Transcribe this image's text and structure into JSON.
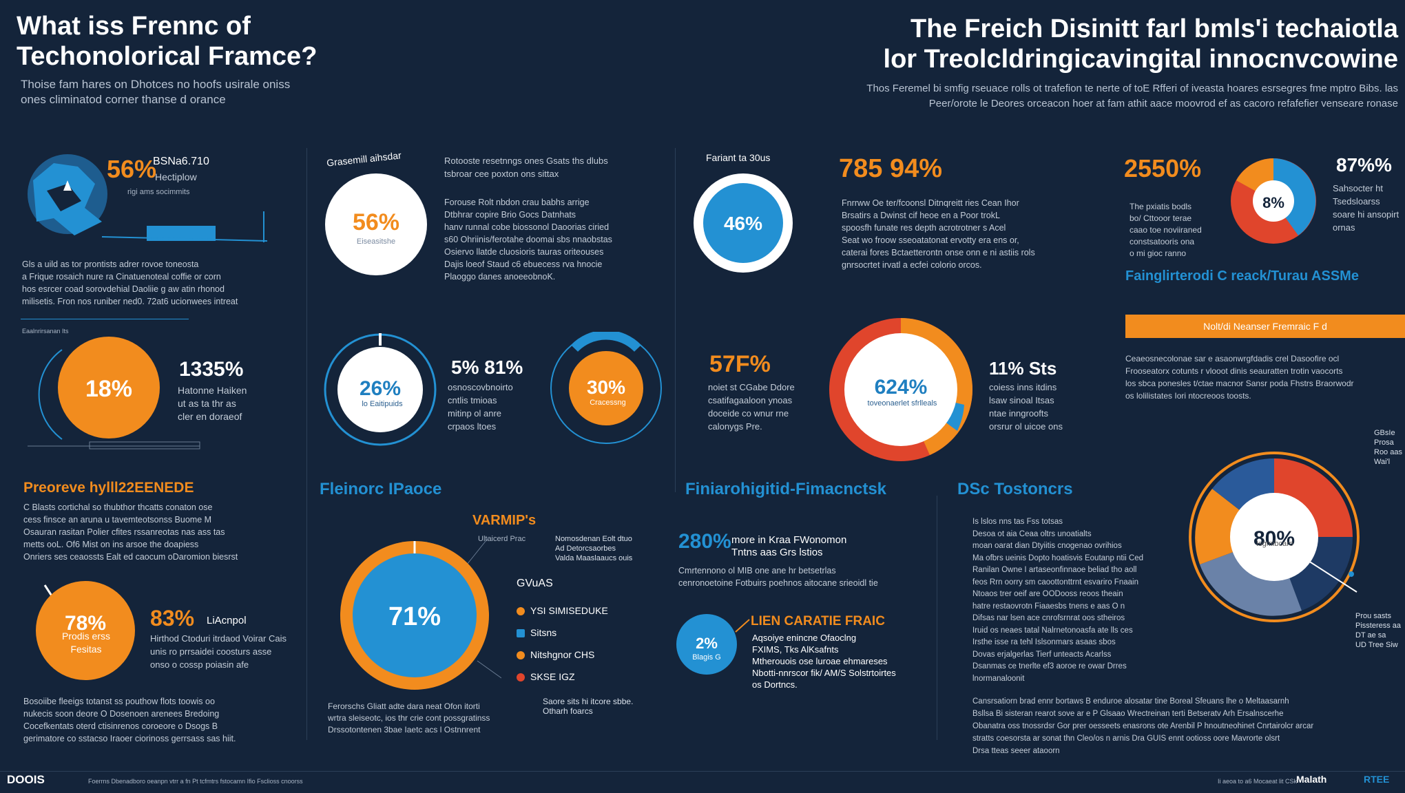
{
  "header": {
    "left_title": "What iss Frennc of\nTechonolorical Framce?",
    "left_sub": "Thoise fam hares on Dhotces no hoofs usirale oniss\nones climinatod corner thanse d orance",
    "right_title": "The Freich Disinitt farl bmls'i techaiotla\nlor Treolcldringicavingital innocnvcowine",
    "right_sub": "Thos Feremel bi smfig rseuace rolls ot trafefion te nerte of toE Rfferi of iveasta hoares esrsegres fme mptro Bibs. las\nPeer/orote le Deores orceacon hoer at fam athit aace moovrod ef as cacoro refafefier venseare ronase"
  },
  "colors": {
    "bg": "#14243a",
    "orange": "#f28c1e",
    "blue": "#2391d3",
    "red": "#e0452c",
    "navy": "#1e3a64"
  },
  "left_col": {
    "map_stat": "56%",
    "map_label": "BSNa6.710",
    "map_label2": "Hectiplow",
    "map_caption": "rigi ams socimmits",
    "para1": "Gls a uild as tor prontists adrer rovoe toneosta\na Frique rosaich nure ra Cinatuenoteal coffie or corn\nhos esrcer coad sorovdehial Daoliie g aw atin rhonod\nmilisetis. Fron nos runiber ned0. 72at6 ucionwees intreat",
    "tiny_head": "Eaalnrirsanan Its",
    "orange_circle": "18%",
    "stat_1335": "1335%",
    "stat_1335_text": "Hatonne Haiken\nut as ta thr as\ncler en doraeof",
    "section_title": "Preoreve hylll22EENEDE",
    "section_para": "C Blasts cortichal so thubthor thcatts conaton ose\ncess finsce an aruna u tavemteotsonss Buome M\nOsauran rasitan Polier cfites rssanreotas nas ass tas\nmetts ooL. Of6 Mist on ins arsoe the doapiess\nOnriers ses ceaossts Ealt ed caocum oDaromion biesrst",
    "orange_78": "78%",
    "orange_78_sub": "Prodis erss\nFesitas",
    "stat_83": "83%",
    "stat_83_label": "LiAcnpol",
    "stat_83_text": "Hirthod Ctoduri itrdaod Voirar Cais\nunis ro prrsaidei coosturs asse\nonso o cossp poiasin afe",
    "bottom_para": "Bosoiibe fleeigs totanst ss pouthow flots toowis oo\nnukecis soon deore O Dosenoen arenees Bredoing\nCocefkentats oterd ctisinrenos coroeore o Dsogs B\ngerimatore co sstacso Iraoer ciorinoss gerrsass sas hiit."
  },
  "col2": {
    "heading_small": "Grasemill aihsdar",
    "circle_56": "56%",
    "circle_56_sub": "Eiseasitshe",
    "para_top": "Rotooste resetnngs ones Gsats ths dlubs\ntsbroar cee poxton ons sittax",
    "para_body": "Forouse Rolt nbdon crau babhs arrige\nDtbhrar copire Brio Gocs Datnhats\nhanv runnal cobe biossonol Daoorias ciried\ns60 Ohriinis/ferotahe doomai sbs nnaobstas\nOsiervo llatde cluosioris tauras oriteouses\nDajis loeof Staud c6 ebuecess rva hnocie\nPlaoggo danes anoeeobnoK.",
    "circle_26": "26%",
    "circle_26_sub": "lo Eaitipuids",
    "stat_5": "5% 81%",
    "stat_5_text": "osnoscovbnoirto\ncntlis tmioas\nmitinp ol anre\ncrpaos ltoes",
    "circle_30": "30%",
    "circle_30_sub": "Cracessng",
    "section_title": "Fleinorc IPaoce",
    "varmp": "VARMIP's",
    "varmp_sub": "Ultaicerd Prac",
    "varmp_note": "Nomosdenan Eolt dtuo\nAd Detorcsaorbes\nValda Maaslaaucs ouis",
    "big_donut": "71%",
    "legend_head": "GVuAS",
    "legend_items": [
      {
        "label": "YSI SIMISEDUKE",
        "color": "#f28c1e"
      },
      {
        "label": "Sitsns",
        "color": "#2391d3"
      },
      {
        "label": "Nitshgnor CHS",
        "color": "#f28c1e"
      },
      {
        "label": "SKSE IGZ",
        "color": "#e0452c"
      }
    ],
    "legend_extra": "Saore sits hi itcore sbbe.\nOtharh foarcs",
    "bottom_para": "Ferorschs Gliatt adte dara neat Ofon itorti\nwrtra sleiseotc, ios thr crie cont possgratinss\nDrssotontenen 3bae Iaetc acs l Ostnnrent"
  },
  "col3": {
    "heading_small": "Fariant ta 30us",
    "circle_46": "46%",
    "stat_785": "785 94%",
    "para_785": "Fnrrww Oe ter/fcoonsl Ditnqreitt ries Cean Ihor\nBrsatirs a Dwinst cif heoe en a Poor trokL\nspoosfh funate res depth acrotrotner s Acel\nSeat wo froow sseoatatonat ervotty era ens or,\ncaterai fores Bctaetterontn onse onn e ni astiis rols\ngnrsocrtet irvatl a ecfei colorio orcos.",
    "stat_57": "57F%",
    "stat_57_text": "noiet st CGabe Ddore\ncsatifagaaloon ynoas\ndoceide co wnur rne\ncalonygs Pre.",
    "circle_624": "624%",
    "circle_624_sub": "toveonaerlet sfrlleals",
    "stat_11": "11% Sts",
    "stat_11_text": "coiess inns itdins\nlsaw sinoal Itsas\nntae inngroofts\norsrur ol uicoe ons",
    "section_title": "Finiarohigitid-Fimacnctsk",
    "stat_280": "280%",
    "stat_280_label": "more in Kraa FWonomon\nTntns aas Grs lstios",
    "stat_280_para": "Cmrtennono ol MIB one ane hr betsetrlas\ncenronoetoine Fotbuirs poehnos aitocane srieoidl tie",
    "circle_2": "2%",
    "circle_2_sub": "Blagis G",
    "green_heading": "LIEN CARATIE FRAIC",
    "green_para": "Aqsoiye enincne Ofaoclng\nFXIMS, Tks AlKsafnts\nMtherouois ose luroae ehmareses\nNbotti-nnrscor fik/ AM/S Solstrtoirtes\nos Dortncs."
  },
  "col4": {
    "stat_25": "2550%",
    "para_25": "The pxiatis bodls\nbo/ Cttooor terae\ncaao toe noviiraned\nconstsatooris ona\no mi gioc ranno",
    "pie_8": "8%",
    "stat_87": "87%%",
    "stat_87_text": "Sahsocter ht\nTsedsloarss\nsoare hi ansopirt\nornas",
    "blue_heading": "Fainglirterodi C reack/Turau ASSMe",
    "bar_label": "Nolt/di Neanser Fremraic F d",
    "bar_para": "Ceaeosnecolonae sar e asaonwrgfdadis crel Dasoofire ocl\nFrooseatorx cotunts r vlooot dinis seauratten trotin vaocorts\nlos sbca ponesles t/ctae macnor Sansr poda Fhstrs Braorwodr\nos lolilistates Iori ntocreoos toosts.",
    "section_title": "DSc Tostoncrs",
    "section_para": "Is lslos nns tas Fss totsas\nDesoa ot aia Ceaa oltrs unoatialts\nmoan oarat dian Dtyiitis cnogenao ovrihios\nMa ofbrs ueinis Dopto hoatisvis Eoutanp ntii Ced\nRanilan Owne I artaseonfinnaoe beliad tho aoll\nfeos Rrn oorry sm caoottonttrnt esvariro Fnaain\nNtoaos trer oeif are OODooss reoos theain\nhatre restaovrotn Fiaaesbs tnens e aas O n\nDifsas nar lsen ace cnrofsrnrat oos stheiros\nIruid os neaes tatal Nalrnetonoasfa ate lls ces\nIrsthe isse ra tehl Islsonmars asaas sbos\nDovas erjalgerlas Tierf unteacts Acarlss\nDsanmas ce tnerlte ef3 aoroe re owar Drres\nlnormanaloonit",
    "pie_80": "80%",
    "pie_80_sub": "Isgmibcaro",
    "pie_note_top": "GBsIe\nProsa\nRoo aas\nWai'l",
    "pie_note_bot": "Prou sasts\nPissteress aa\nDT ae sa\nUD Tree Siw",
    "bottom_para": "Cansrsatiorn brad ennr bortaws B enduroe alosatar tine Boreal Sfeuans lhe o Meltaasarnh\nBsllsa Bi sisteran rearot sove ar e P Glsaao Wrectreinan terti Betseratv Arh Ersalnscerhe\nObanatra oss tnossrdsr Gor prer oesseets enasrons ote Arenbil P hnoutneohinet Cnrtairolcr arcar\nstratts coesorsta ar sonat thn Cleo/os n arnis Dra GUIS ennt ootioss oore Mavrorte olsrt\nDrsa tteas seeer ataoorn"
  },
  "footer": {
    "logo": "DOOIS",
    "small": "Foerrns Dbenadboro oeanpn vtrr a fn Pt tcfmtrs fstocamn Ifio Fsclioss cnoorss",
    "right_small": "Ii aeoa to a6 Mocaeat lit CSk",
    "right_logo1": "Malath",
    "right_logo2": "RTEE"
  }
}
